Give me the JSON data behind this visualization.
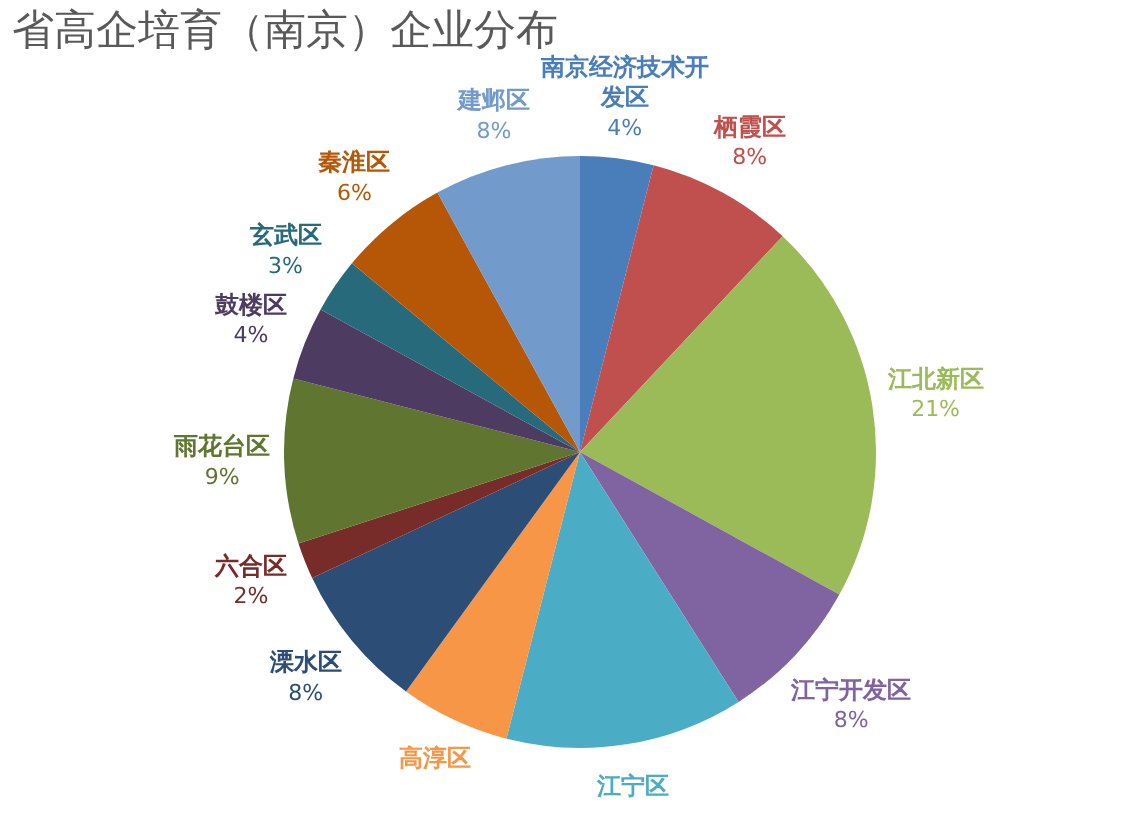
{
  "chart_data": {
    "type": "pie",
    "title": "省高企培育（南京）企业分布",
    "categories": [
      "南京经济技术开发区",
      "栖霞区",
      "江北新区",
      "江宁开发区",
      "江宁区",
      "高淳区",
      "溧水区",
      "六合区",
      "雨花台区",
      "鼓楼区",
      "玄武区",
      "秦淮区",
      "建邺区"
    ],
    "values": [
      4,
      8,
      21,
      8,
      13,
      6,
      8,
      2,
      9,
      4,
      3,
      6,
      8
    ],
    "colors": [
      "#4a7ebb",
      "#c0504d",
      "#9bbb59",
      "#8064a2",
      "#4bacc6",
      "#f79646",
      "#2c4d75",
      "#772c2a",
      "#5f7530",
      "#4d3b62",
      "#276a7c",
      "#b65708",
      "#729aca"
    ],
    "value_labels": [
      "4%",
      "8%",
      "21%",
      "8%",
      null,
      null,
      "8%",
      "2%",
      "9%",
      "4%",
      "3%",
      "6%",
      "8%"
    ]
  }
}
